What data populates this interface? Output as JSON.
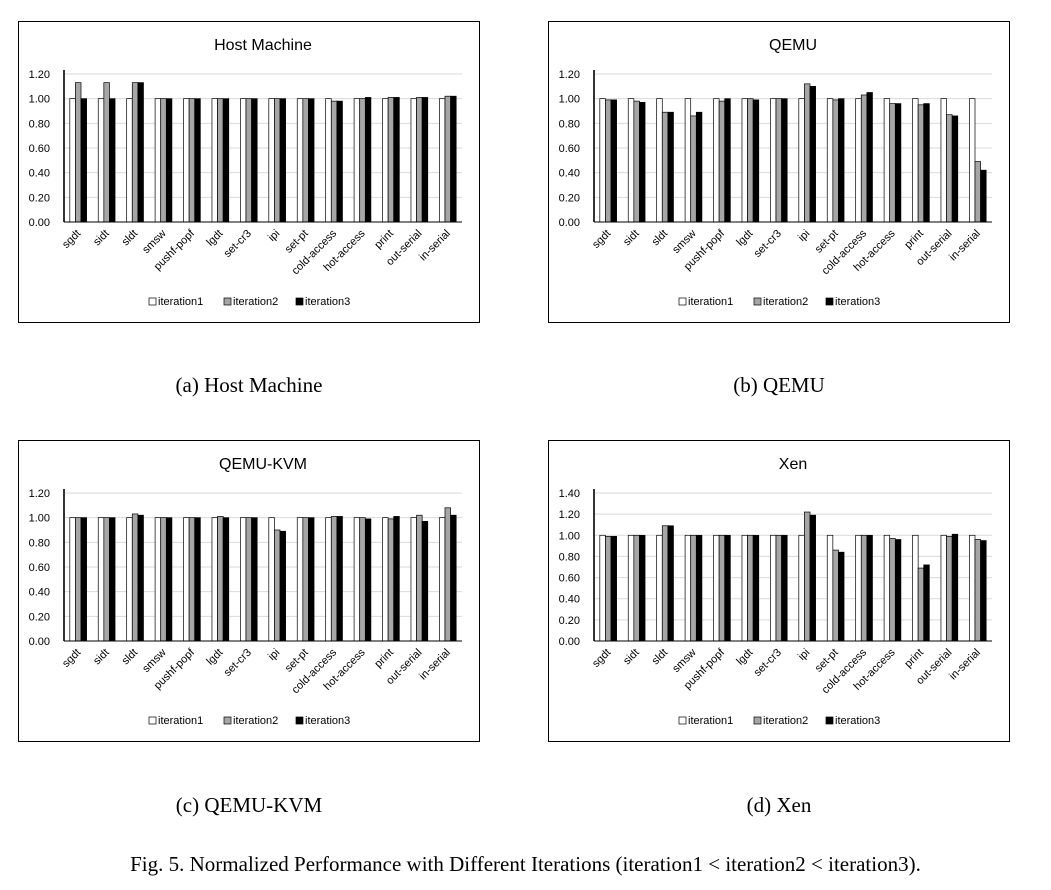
{
  "figure_caption": "Fig. 5.  Normalized Performance with Different Iterations (iteration1 < iteration2 < iteration3).",
  "chart_data": [
    {
      "type": "bar",
      "title": "Host Machine",
      "subcaption": "(a) Host Machine",
      "categories": [
        "sgdt",
        "sidt",
        "sldt",
        "smsw",
        "pushf-popf",
        "lgdt",
        "set-cr3",
        "ipi",
        "set-pt",
        "cold-access",
        "hot-access",
        "print",
        "out-serial",
        "in-serial"
      ],
      "series": [
        {
          "name": "iteration1",
          "color": "#ffffff",
          "values": [
            1.0,
            1.0,
            1.0,
            1.0,
            1.0,
            1.0,
            1.0,
            1.0,
            1.0,
            1.0,
            1.0,
            1.0,
            1.0,
            1.0
          ]
        },
        {
          "name": "iteration2",
          "color": "#a6a6a6",
          "values": [
            1.13,
            1.13,
            1.13,
            1.0,
            1.0,
            1.0,
            1.0,
            1.0,
            1.0,
            0.98,
            1.0,
            1.01,
            1.01,
            1.02
          ]
        },
        {
          "name": "iteration3",
          "color": "#000000",
          "values": [
            1.0,
            1.0,
            1.13,
            1.0,
            1.0,
            1.0,
            1.0,
            1.0,
            1.0,
            0.98,
            1.01,
            1.01,
            1.01,
            1.02
          ]
        }
      ],
      "yticks": [
        "0.00",
        "0.20",
        "0.40",
        "0.60",
        "0.80",
        "1.00",
        "1.20"
      ],
      "ylim": [
        0,
        1.2
      ],
      "grid": true,
      "legend": "bottom"
    },
    {
      "type": "bar",
      "title": "QEMU",
      "subcaption": "(b) QEMU",
      "categories": [
        "sgdt",
        "sidt",
        "sldt",
        "smsw",
        "pushf-popf",
        "lgdt",
        "set-cr3",
        "ipi",
        "set-pt",
        "cold-access",
        "hot-access",
        "print",
        "out-serial",
        "in-serial"
      ],
      "series": [
        {
          "name": "iteration1",
          "color": "#ffffff",
          "values": [
            1.0,
            1.0,
            1.0,
            1.0,
            1.0,
            1.0,
            1.0,
            1.0,
            1.0,
            1.0,
            1.0,
            1.0,
            1.0,
            1.0
          ]
        },
        {
          "name": "iteration2",
          "color": "#a6a6a6",
          "values": [
            0.99,
            0.98,
            0.89,
            0.86,
            0.98,
            1.0,
            1.0,
            1.12,
            0.99,
            1.03,
            0.96,
            0.95,
            0.87,
            0.49
          ]
        },
        {
          "name": "iteration3",
          "color": "#000000",
          "values": [
            0.99,
            0.97,
            0.89,
            0.89,
            1.0,
            0.99,
            1.0,
            1.1,
            1.0,
            1.05,
            0.96,
            0.96,
            0.86,
            0.42
          ]
        }
      ],
      "yticks": [
        "0.00",
        "0.20",
        "0.40",
        "0.60",
        "0.80",
        "1.00",
        "1.20"
      ],
      "ylim": [
        0,
        1.2
      ],
      "grid": true,
      "legend": "bottom"
    },
    {
      "type": "bar",
      "title": "QEMU-KVM",
      "subcaption": "(c) QEMU-KVM",
      "categories": [
        "sgdt",
        "sidt",
        "sldt",
        "smsw",
        "pushf-popf",
        "lgdt",
        "set-cr3",
        "ipi",
        "set-pt",
        "cold-access",
        "hot-access",
        "print",
        "out-serial",
        "in-serial"
      ],
      "series": [
        {
          "name": "iteration1",
          "color": "#ffffff",
          "values": [
            1.0,
            1.0,
            1.0,
            1.0,
            1.0,
            1.0,
            1.0,
            1.0,
            1.0,
            1.0,
            1.0,
            1.0,
            1.0,
            1.0
          ]
        },
        {
          "name": "iteration2",
          "color": "#a6a6a6",
          "values": [
            1.0,
            1.0,
            1.03,
            1.0,
            1.0,
            1.01,
            1.0,
            0.9,
            1.0,
            1.01,
            1.0,
            0.99,
            1.02,
            1.08
          ]
        },
        {
          "name": "iteration3",
          "color": "#000000",
          "values": [
            1.0,
            1.0,
            1.02,
            1.0,
            1.0,
            1.0,
            1.0,
            0.89,
            1.0,
            1.01,
            0.99,
            1.01,
            0.97,
            1.02
          ]
        }
      ],
      "yticks": [
        "0.00",
        "0.20",
        "0.40",
        "0.60",
        "0.80",
        "1.00",
        "1.20"
      ],
      "ylim": [
        0,
        1.2
      ],
      "grid": true,
      "legend": "bottom"
    },
    {
      "type": "bar",
      "title": "Xen",
      "subcaption": "(d) Xen",
      "categories": [
        "sgdt",
        "sidt",
        "sldt",
        "smsw",
        "pushf-popf",
        "lgdt",
        "set-cr3",
        "ipi",
        "set-pt",
        "cold-access",
        "hot-access",
        "print",
        "out-serial",
        "in-serial"
      ],
      "series": [
        {
          "name": "iteration1",
          "color": "#ffffff",
          "values": [
            1.0,
            1.0,
            1.0,
            1.0,
            1.0,
            1.0,
            1.0,
            1.0,
            1.0,
            1.0,
            1.0,
            1.0,
            1.0,
            1.0
          ]
        },
        {
          "name": "iteration2",
          "color": "#a6a6a6",
          "values": [
            0.99,
            1.0,
            1.09,
            1.0,
            1.0,
            1.0,
            1.0,
            1.22,
            0.86,
            1.0,
            0.97,
            0.69,
            0.99,
            0.96
          ]
        },
        {
          "name": "iteration3",
          "color": "#000000",
          "values": [
            0.99,
            1.0,
            1.09,
            1.0,
            1.0,
            1.0,
            1.0,
            1.19,
            0.84,
            1.0,
            0.96,
            0.72,
            1.01,
            0.95
          ]
        }
      ],
      "yticks": [
        "0.00",
        "0.20",
        "0.40",
        "0.60",
        "0.80",
        "1.00",
        "1.20",
        "1.40"
      ],
      "ylim": [
        0,
        1.4
      ],
      "grid": true,
      "legend": "bottom"
    }
  ]
}
